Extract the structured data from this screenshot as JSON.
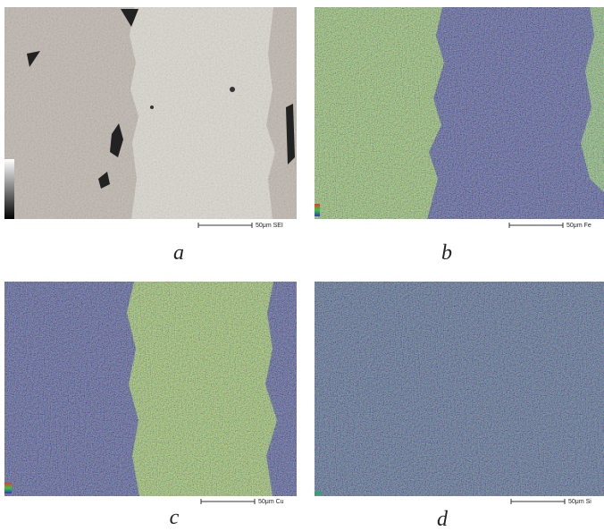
{
  "panels": [
    {
      "label": "a",
      "scale": "50μm SEI"
    },
    {
      "label": "b",
      "scale": "50μm Fe"
    },
    {
      "label": "c",
      "scale": "50μm Cu"
    },
    {
      "label": "d",
      "scale": "50μm Si"
    }
  ]
}
